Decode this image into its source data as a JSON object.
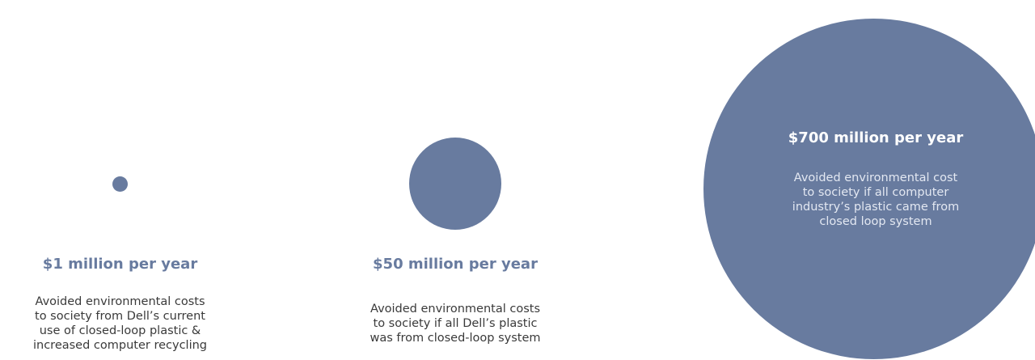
{
  "colors": {
    "circle_fill": "#687b9f",
    "heading_text": "#687b9f",
    "body_text": "#3a3a3a",
    "inverse_text": "#ffffff"
  },
  "items": [
    {
      "heading": "$1 million per year",
      "description_lines": [
        "Avoided environmental costs",
        "to society from Dell’s current",
        "use of closed-loop plastic &",
        "increased computer recycling"
      ]
    },
    {
      "heading": "$50 million per year",
      "description_lines": [
        "Avoided environmental costs",
        "to society if all  Dell’s plastic",
        "was from closed-loop system"
      ]
    },
    {
      "heading": "$700 million per year",
      "description_lines": [
        "Avoided environmental cost",
        "to society if all  computer",
        "industry’s  plastic came from",
        "closed loop system"
      ]
    }
  ]
}
